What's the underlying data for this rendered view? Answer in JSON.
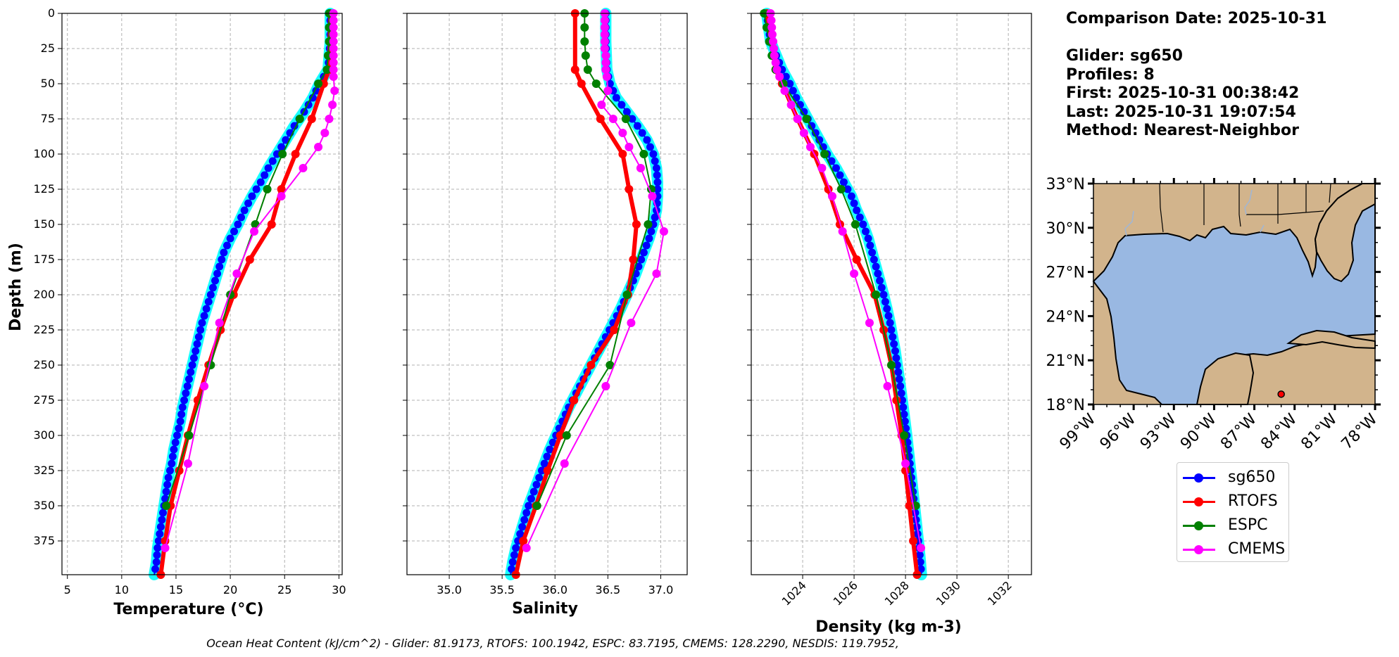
{
  "chart_data": [
    {
      "type": "line",
      "xlabel": "Temperature (°C)",
      "ylabel": "Depth (m)",
      "xlim": [
        4.5,
        30.3
      ],
      "ylim": [
        0,
        399
      ],
      "xticks": [
        5,
        10,
        15,
        20,
        25,
        30
      ],
      "yticks": [
        0,
        25,
        50,
        75,
        100,
        125,
        150,
        175,
        200,
        225,
        250,
        275,
        300,
        325,
        350,
        375
      ],
      "grid": true,
      "series": [
        {
          "name": "sg650",
          "color": "#0000ff",
          "depth": [
            0,
            20,
            40,
            50,
            60,
            70,
            80,
            90,
            100,
            110,
            120,
            130,
            140,
            150,
            160,
            170,
            180,
            190,
            200,
            210,
            220,
            230,
            240,
            250,
            260,
            270,
            280,
            290,
            300,
            310,
            320,
            330,
            340,
            350,
            360,
            370,
            380,
            390,
            399
          ],
          "values": [
            29.2,
            29.2,
            29.0,
            28.2,
            27.6,
            26.8,
            25.9,
            25.1,
            24.3,
            23.5,
            22.8,
            22.0,
            21.3,
            20.7,
            20.0,
            19.4,
            19.0,
            18.6,
            18.2,
            17.8,
            17.4,
            17.1,
            16.8,
            16.5,
            16.2,
            15.9,
            15.6,
            15.4,
            15.1,
            14.8,
            14.6,
            14.3,
            14.1,
            13.9,
            13.7,
            13.5,
            13.3,
            13.2,
            13.0
          ]
        },
        {
          "name": "RTOFS",
          "color": "#ff0000",
          "depth": [
            0,
            40,
            50,
            75,
            100,
            125,
            150,
            175,
            200,
            225,
            250,
            275,
            300,
            325,
            350,
            375,
            399
          ],
          "values": [
            29.2,
            29.1,
            28.6,
            27.5,
            26.0,
            24.7,
            23.8,
            21.8,
            20.3,
            19.1,
            18.0,
            17.0,
            16.1,
            15.3,
            14.5,
            14.0,
            13.6
          ]
        },
        {
          "name": "ESPC",
          "color": "#008000",
          "depth": [
            0,
            10,
            20,
            30,
            40,
            50,
            75,
            100,
            125,
            150,
            200,
            250,
            300,
            350
          ],
          "values": [
            29.1,
            29.1,
            29.1,
            29.0,
            28.9,
            28.1,
            26.4,
            24.8,
            23.4,
            22.3,
            20.0,
            18.2,
            16.2,
            14.1
          ]
        },
        {
          "name": "CMEMS",
          "color": "#ff00ff",
          "depth": [
            0,
            5,
            10,
            15,
            20,
            25,
            30,
            35,
            40,
            45,
            55,
            65,
            75,
            85,
            95,
            110,
            130,
            155,
            185,
            220,
            265,
            320,
            380
          ],
          "values": [
            29.5,
            29.5,
            29.5,
            29.5,
            29.5,
            29.5,
            29.5,
            29.5,
            29.5,
            29.5,
            29.6,
            29.4,
            29.1,
            28.7,
            28.1,
            26.7,
            24.7,
            22.2,
            20.6,
            19.0,
            17.6,
            16.1,
            14.0
          ]
        }
      ]
    },
    {
      "type": "line",
      "xlabel": "Salinity",
      "ylabel": "",
      "xlim": [
        34.6,
        37.25
      ],
      "ylim": [
        0,
        399
      ],
      "xticks": [
        35.0,
        35.5,
        36.0,
        36.5,
        37.0
      ],
      "grid": true,
      "series": [
        {
          "name": "sg650",
          "color": "#0000ff",
          "depth": [
            0,
            20,
            40,
            50,
            60,
            70,
            80,
            90,
            100,
            110,
            120,
            130,
            140,
            150,
            160,
            170,
            180,
            190,
            200,
            210,
            220,
            230,
            240,
            250,
            260,
            270,
            280,
            290,
            300,
            310,
            320,
            330,
            340,
            350,
            360,
            370,
            380,
            390,
            399
          ],
          "values": [
            36.48,
            36.48,
            36.49,
            36.52,
            36.58,
            36.68,
            36.78,
            36.87,
            36.93,
            36.96,
            36.97,
            36.97,
            36.96,
            36.93,
            36.89,
            36.84,
            36.79,
            36.74,
            36.68,
            36.62,
            36.55,
            36.48,
            36.41,
            36.34,
            36.27,
            36.2,
            36.13,
            36.07,
            36.01,
            35.95,
            35.9,
            35.85,
            35.8,
            35.75,
            35.71,
            35.67,
            35.63,
            35.6,
            35.58
          ]
        },
        {
          "name": "RTOFS",
          "color": "#ff0000",
          "depth": [
            0,
            40,
            50,
            75,
            100,
            125,
            150,
            175,
            200,
            225,
            250,
            275,
            300,
            325,
            350,
            375,
            399
          ],
          "values": [
            36.19,
            36.19,
            36.25,
            36.43,
            36.64,
            36.7,
            36.77,
            36.74,
            36.69,
            36.56,
            36.34,
            36.18,
            36.05,
            35.93,
            35.82,
            35.7,
            35.63
          ]
        },
        {
          "name": "ESPC",
          "color": "#008000",
          "depth": [
            0,
            10,
            20,
            30,
            40,
            50,
            75,
            100,
            125,
            150,
            200,
            250,
            300,
            350
          ],
          "values": [
            36.28,
            36.28,
            36.28,
            36.29,
            36.31,
            36.39,
            36.67,
            36.84,
            36.91,
            36.88,
            36.68,
            36.52,
            36.11,
            35.83
          ]
        },
        {
          "name": "CMEMS",
          "color": "#ff00ff",
          "depth": [
            0,
            5,
            10,
            15,
            20,
            25,
            30,
            35,
            40,
            45,
            55,
            65,
            75,
            85,
            95,
            110,
            130,
            155,
            185,
            220,
            265,
            320,
            380
          ],
          "values": [
            36.47,
            36.47,
            36.47,
            36.47,
            36.47,
            36.47,
            36.48,
            36.48,
            36.48,
            36.49,
            36.5,
            36.44,
            36.55,
            36.64,
            36.7,
            36.81,
            36.92,
            37.03,
            36.96,
            36.72,
            36.48,
            36.09,
            35.73
          ]
        }
      ]
    },
    {
      "type": "line",
      "xlabel": "Density (kg m-3)",
      "ylabel": "",
      "xlim": [
        1022.0,
        1032.9
      ],
      "ylim": [
        0,
        399
      ],
      "xticks": [
        1024,
        1026,
        1028,
        1030,
        1032
      ],
      "grid": true,
      "series": [
        {
          "name": "sg650",
          "color": "#0000ff",
          "depth": [
            0,
            20,
            40,
            50,
            60,
            70,
            80,
            90,
            100,
            110,
            120,
            130,
            140,
            150,
            160,
            170,
            180,
            190,
            200,
            210,
            220,
            230,
            240,
            250,
            260,
            270,
            280,
            290,
            300,
            310,
            320,
            330,
            340,
            350,
            360,
            370,
            380,
            390,
            399
          ],
          "values": [
            1022.6,
            1022.75,
            1023.2,
            1023.5,
            1023.75,
            1024.05,
            1024.35,
            1024.65,
            1024.95,
            1025.3,
            1025.6,
            1025.9,
            1026.1,
            1026.35,
            1026.55,
            1026.7,
            1026.85,
            1027.0,
            1027.15,
            1027.28,
            1027.4,
            1027.5,
            1027.6,
            1027.68,
            1027.76,
            1027.84,
            1027.91,
            1027.98,
            1028.05,
            1028.11,
            1028.17,
            1028.23,
            1028.29,
            1028.35,
            1028.41,
            1028.47,
            1028.53,
            1028.58,
            1028.62
          ]
        },
        {
          "name": "RTOFS",
          "color": "#ff0000",
          "depth": [
            0,
            40,
            50,
            75,
            100,
            125,
            150,
            175,
            200,
            225,
            250,
            275,
            300,
            325,
            350,
            375,
            399
          ],
          "values": [
            1022.6,
            1022.95,
            1023.2,
            1023.8,
            1024.45,
            1025.0,
            1025.45,
            1026.1,
            1026.8,
            1027.15,
            1027.45,
            1027.65,
            1027.85,
            1028.0,
            1028.15,
            1028.3,
            1028.45
          ]
        },
        {
          "name": "ESPC",
          "color": "#008000",
          "depth": [
            0,
            10,
            20,
            30,
            40,
            50,
            75,
            100,
            125,
            150,
            200,
            250,
            300,
            350
          ],
          "values": [
            1022.5,
            1022.6,
            1022.7,
            1022.8,
            1022.95,
            1023.25,
            1024.15,
            1024.85,
            1025.5,
            1026.05,
            1026.85,
            1027.45,
            1027.95,
            1028.4
          ]
        },
        {
          "name": "CMEMS",
          "color": "#ff00ff",
          "depth": [
            0,
            5,
            10,
            15,
            20,
            25,
            30,
            35,
            40,
            45,
            55,
            65,
            75,
            85,
            95,
            110,
            130,
            155,
            185,
            220,
            265,
            320,
            380
          ],
          "values": [
            1022.75,
            1022.78,
            1022.8,
            1022.82,
            1022.85,
            1022.88,
            1022.9,
            1022.95,
            1023.0,
            1023.1,
            1023.3,
            1023.55,
            1023.8,
            1024.05,
            1024.3,
            1024.75,
            1025.15,
            1025.55,
            1026.0,
            1026.6,
            1027.3,
            1028.0,
            1028.6
          ]
        }
      ]
    }
  ],
  "legend": [
    {
      "name": "sg650",
      "color": "#0000ff"
    },
    {
      "name": "RTOFS",
      "color": "#ff0000"
    },
    {
      "name": "ESPC",
      "color": "#008000"
    },
    {
      "name": "CMEMS",
      "color": "#ff00ff"
    }
  ],
  "info": {
    "comparison_date": "Comparison Date: 2025-10-31",
    "glider": "Glider: sg650",
    "profiles": "Profiles: 8",
    "first": "First: 2025-10-31 00:38:42",
    "last": "Last: 2025-10-31 19:07:54",
    "method": "Method: Nearest-Neighbor"
  },
  "map": {
    "lat_labels": [
      "33°N",
      "30°N",
      "27°N",
      "24°N",
      "21°N",
      "18°N"
    ],
    "lon_labels": [
      "99°W",
      "96°W",
      "93°W",
      "90°W",
      "87°W",
      "84°W",
      "81°W",
      "78°W"
    ],
    "lat_range": [
      18,
      33
    ],
    "lon_range": [
      -99,
      -78
    ],
    "glider_position": {
      "lon": -85.0,
      "lat": 18.7
    },
    "land_color": "#d2b48c",
    "ocean_color": "#99b8e2"
  },
  "footer": "Ocean Heat Content (kJ/cm^2) - Glider: 81.9173,  RTOFS: 100.1942,  ESPC: 83.7195,  CMEMS: 128.2290,  NESDIS: 119.7952,"
}
